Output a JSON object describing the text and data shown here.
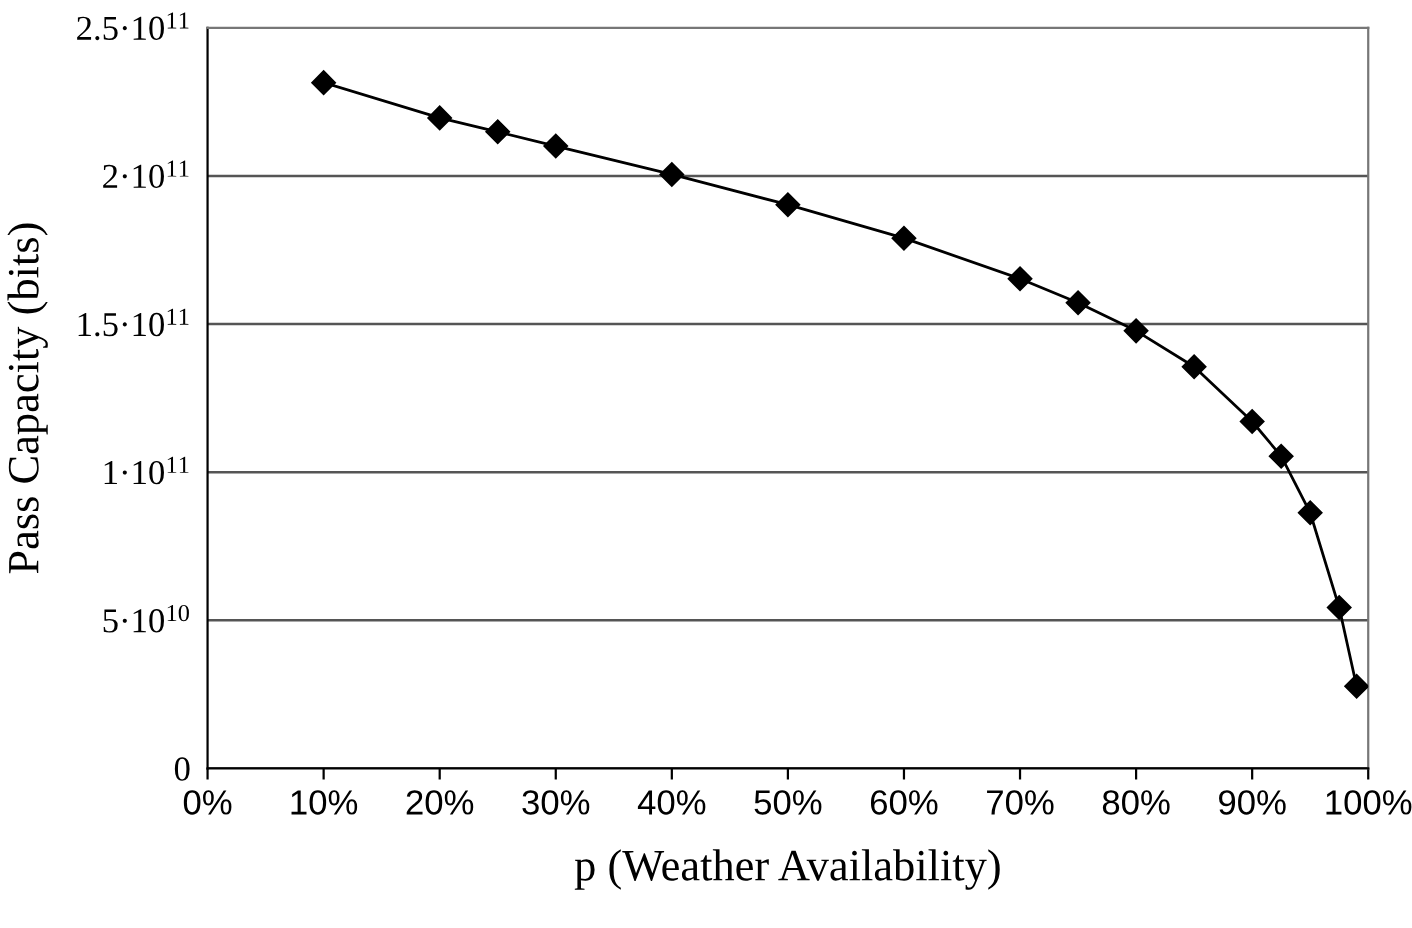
{
  "chart_data": {
    "type": "line",
    "xlabel": "p (Weather Availability)",
    "ylabel": "Pass Capacity (bits)",
    "x": [
      10,
      20,
      25,
      30,
      40,
      50,
      60,
      70,
      75,
      80,
      85,
      90,
      92.5,
      95,
      97.5,
      99
    ],
    "series": [
      {
        "color": "#000000",
        "values": [
          231500000000.0,
          219600000000.0,
          214900000000.0,
          210100000000.0,
          200500000000.0,
          190300000000.0,
          179000000000.0,
          165300000000.0,
          157200000000.0,
          147700000000.0,
          135600000000.0,
          117100000000.0,
          105400000000.0,
          86300000000.0,
          54300000000.0,
          27700000000.0
        ]
      }
    ],
    "xlim": [
      0,
      100
    ],
    "xticks": [
      {
        "value": 0,
        "label": "0%"
      },
      {
        "value": 10,
        "label": "10%"
      },
      {
        "value": 20,
        "label": "20%"
      },
      {
        "value": 30,
        "label": "30%"
      },
      {
        "value": 40,
        "label": "40%"
      },
      {
        "value": 50,
        "label": "50%"
      },
      {
        "value": 60,
        "label": "60%"
      },
      {
        "value": 70,
        "label": "70%"
      },
      {
        "value": 80,
        "label": "80%"
      },
      {
        "value": 90,
        "label": "90%"
      },
      {
        "value": 100,
        "label": "100%"
      }
    ],
    "ylim": [
      0,
      250000000000.0
    ],
    "yticks": [
      0,
      {
        "value": 50000000000.0,
        "label": "5·10$^{10}$"
      },
      {
        "value": 100000000000.0,
        "label": "1·10$^{11}$"
      },
      {
        "value": 150000000000.0,
        "label": "1.5·10$^{11}$"
      },
      {
        "value": 200000000000.0,
        "label": "2·10$^{11}$"
      },
      {
        "value": 250000000000.0,
        "label": "2.5·10$^{11}$"
      }
    ],
    "grid": "y",
    "marker": "diamond",
    "line_style": "solid",
    "legend": false
  }
}
